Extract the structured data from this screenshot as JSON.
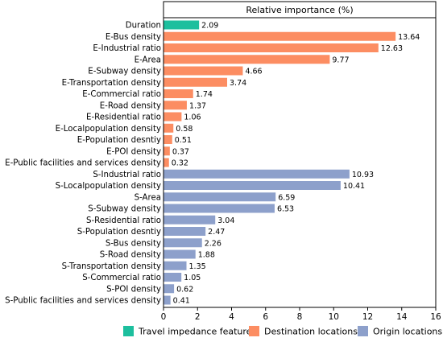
{
  "chart_data": {
    "type": "bar",
    "orientation": "horizontal",
    "title": "Relative importance (%)",
    "xlabel": "",
    "ylabel": "",
    "xlim": [
      0,
      16
    ],
    "x_ticks": [
      0,
      2,
      4,
      6,
      8,
      10,
      12,
      14,
      16
    ],
    "grid": false,
    "legend_position": "bottom",
    "legend": [
      {
        "name": "Travel impedance feature",
        "color": "#1dbf9e"
      },
      {
        "name": "Destination locations",
        "color": "#fc8d62"
      },
      {
        "name": "Origin locations",
        "color": "#8da0cb"
      }
    ],
    "categories": [
      "Duration",
      "E-Bus density",
      "E-Industrial ratio",
      "E-Area",
      "E-Subway density",
      "E-Transportation density",
      "E-Commercial ratio",
      "E-Road density",
      "E-Residential ratio",
      "E-Localpopulation density",
      "E-Population desntiy",
      "E-POI density",
      "E-Public facilities and services density",
      "S-Industrial ratio",
      "S-Localpopulation density",
      "S-Area",
      "S-Subway density",
      "S-Residential ratio",
      "S-Population desntiy",
      "S-Bus density",
      "S-Road density",
      "S-Transportation density",
      "S-Commercial ratio",
      "S-POI density",
      "S-Public facilities and services density"
    ],
    "values": [
      2.09,
      13.64,
      12.63,
      9.77,
      4.66,
      3.74,
      1.74,
      1.37,
      1.06,
      0.58,
      0.51,
      0.37,
      0.32,
      10.93,
      10.41,
      6.59,
      6.53,
      3.04,
      2.47,
      2.26,
      1.88,
      1.35,
      1.05,
      0.62,
      0.41
    ],
    "value_labels": [
      "2.09",
      "13.64",
      "12.63",
      "9.77",
      "4.66",
      "3.74",
      "1.74",
      "1.37",
      "1.06",
      "0.58",
      "0.51",
      "0.37",
      "0.32",
      "10.93",
      "10.41",
      "6.59",
      "6.53",
      "3.04",
      "2.47",
      "2.26",
      "1.88",
      "1.35",
      "1.05",
      "0.62",
      "0.41"
    ],
    "groups": [
      0,
      1,
      1,
      1,
      1,
      1,
      1,
      1,
      1,
      1,
      1,
      1,
      1,
      2,
      2,
      2,
      2,
      2,
      2,
      2,
      2,
      2,
      2,
      2,
      2
    ]
  }
}
